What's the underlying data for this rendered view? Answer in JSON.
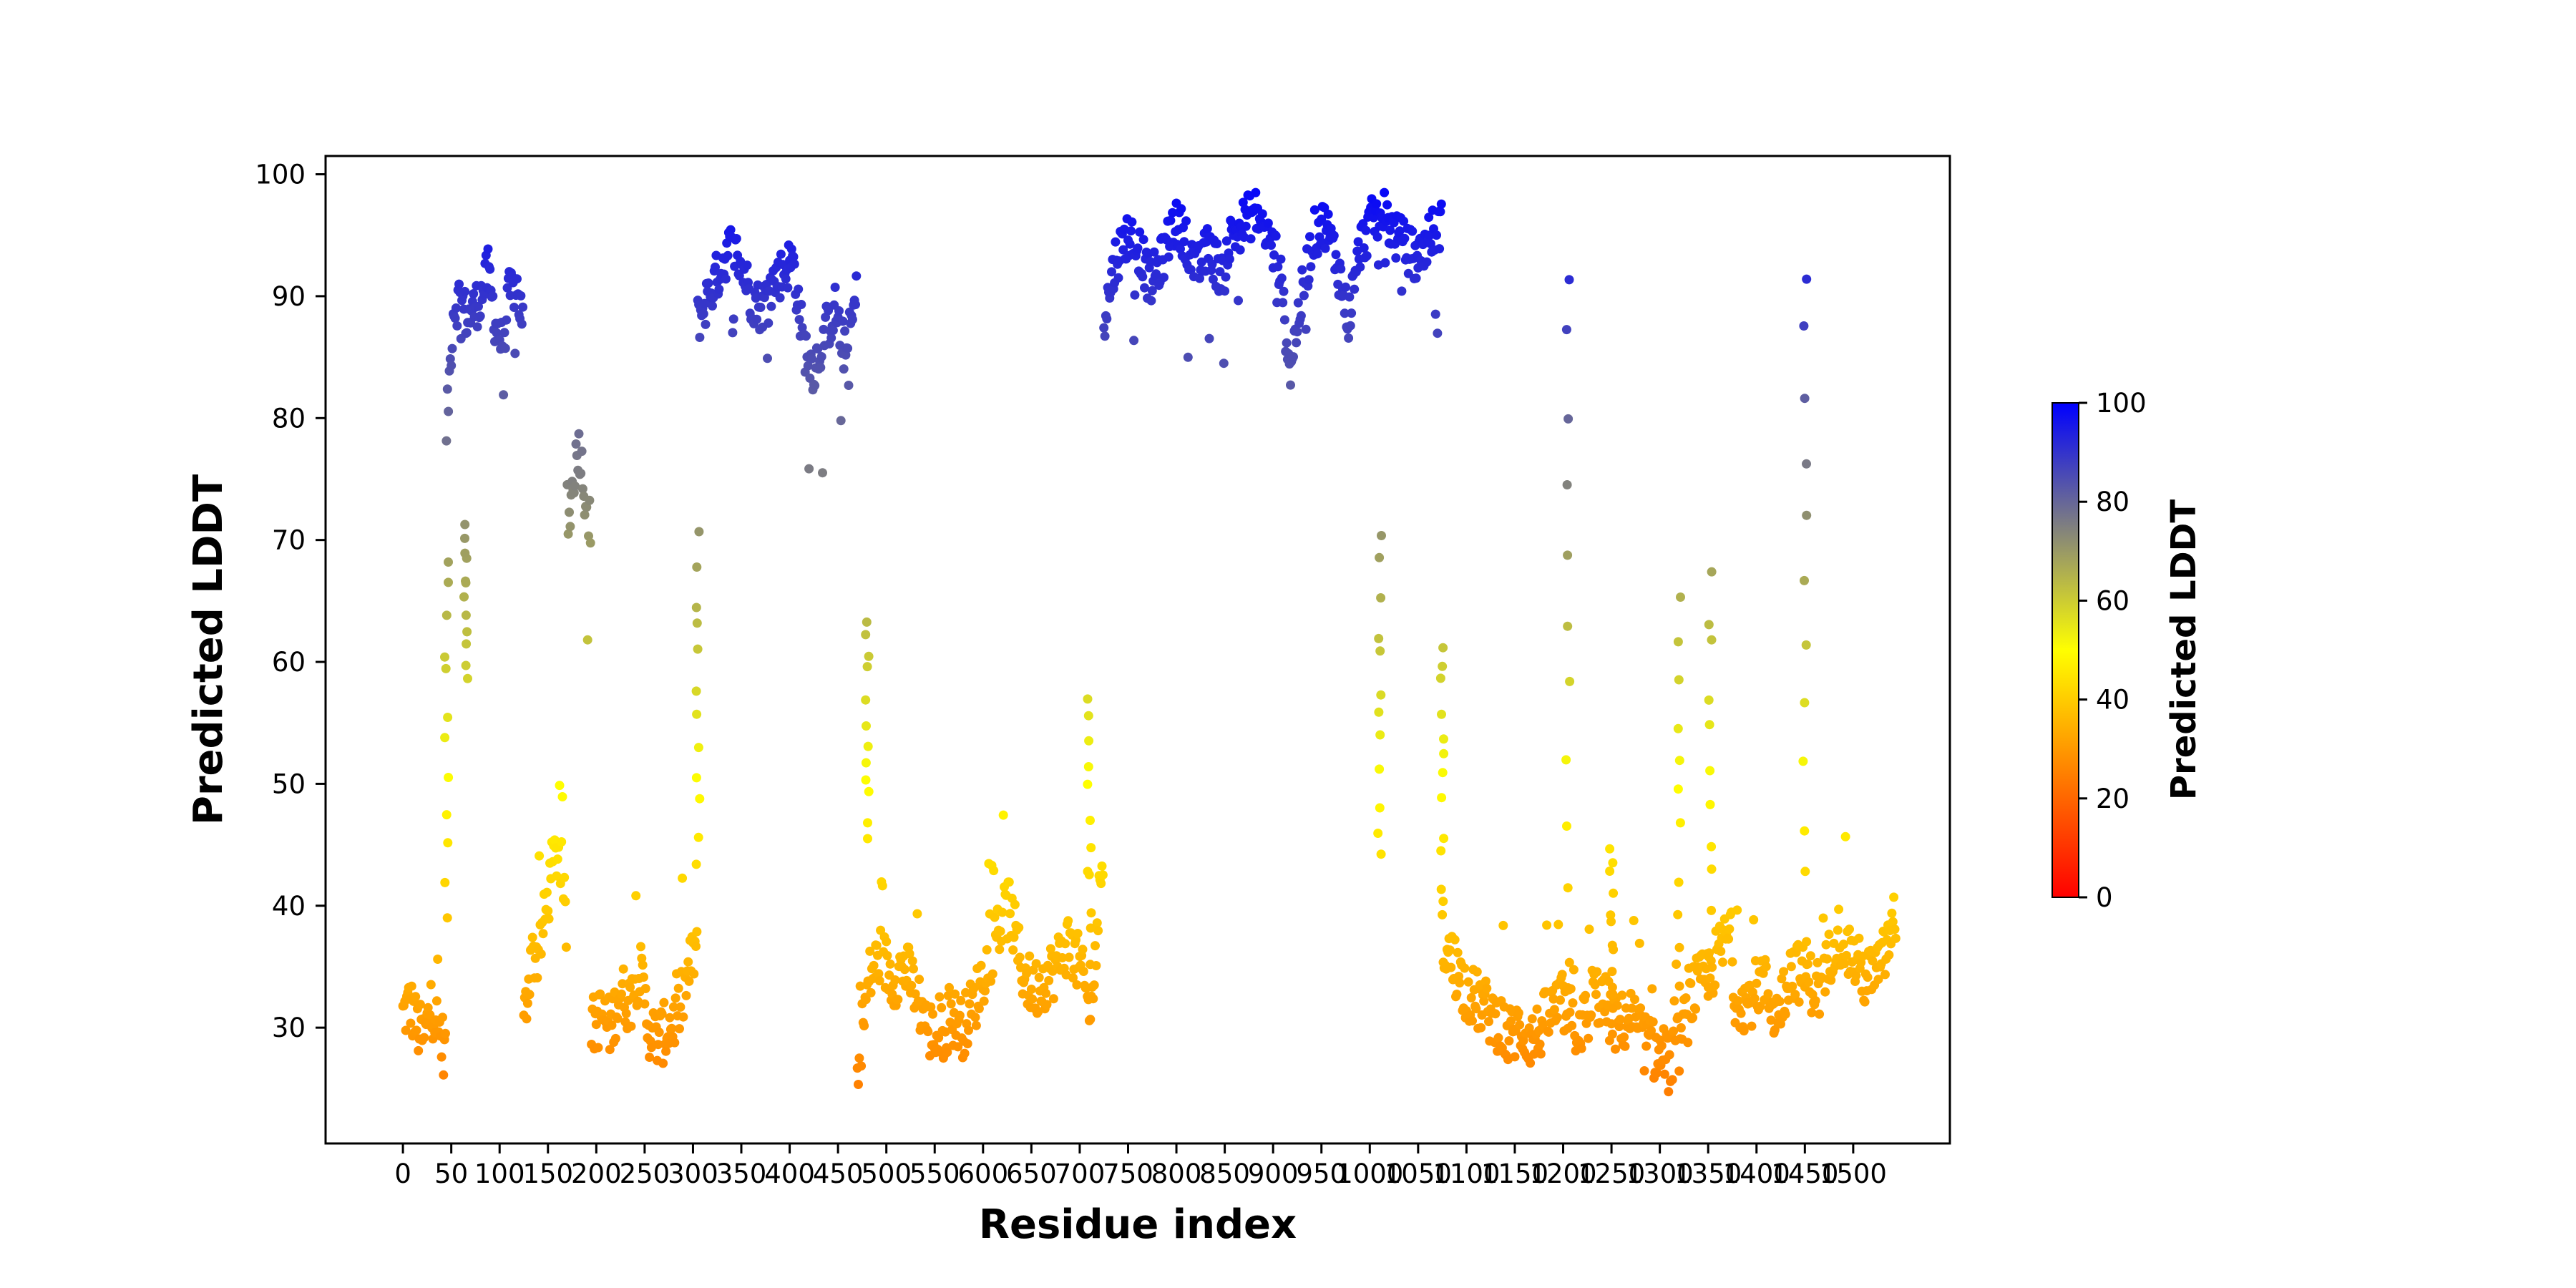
{
  "chart_data": {
    "type": "scatter",
    "xlabel": "Residue index",
    "ylabel": "Predicted LDDT",
    "xlim": [
      -80,
      1600
    ],
    "ylim": [
      20.5,
      101.5
    ],
    "x_ticks": [
      "0",
      "50",
      "100",
      "150",
      "200",
      "250",
      "300",
      "350",
      "400",
      "450",
      "500",
      "550",
      "600",
      "650",
      "700",
      "750",
      "800",
      "850",
      "900",
      "950",
      "1000",
      "1050",
      "1100",
      "1150",
      "1200",
      "1250",
      "1300",
      "1350",
      "1400",
      "1450",
      "1500"
    ],
    "y_ticks": [
      "30",
      "40",
      "50",
      "60",
      "70",
      "80",
      "90",
      "100"
    ],
    "grid": false,
    "colorbar": {
      "label": "Predicted LDDT",
      "range": [
        0,
        100
      ],
      "ticks": [
        "0",
        "20",
        "40",
        "60",
        "80",
        "100"
      ],
      "colormap": [
        "#ff0000",
        "#ffff00",
        "#0000ff"
      ]
    },
    "series": [
      {
        "segments": [
          {
            "x0": 0,
            "x1": 45,
            "profile": [
              31,
              32,
              30,
              29,
              32,
              30,
              28
            ]
          },
          {
            "x0": 45,
            "x1": 125,
            "profile": [
              79,
              89,
              90,
              88,
              89,
              90,
              92,
              88,
              86,
              90,
              91,
              88
            ]
          },
          {
            "x0": 125,
            "x1": 170,
            "profile": [
              30,
              36,
              36,
              39,
              43,
              45,
              38
            ]
          },
          {
            "x0": 170,
            "x1": 195,
            "profile": [
              70,
              75,
              78,
              74,
              71
            ]
          },
          {
            "x0": 195,
            "x1": 305,
            "profile": [
              30,
              31,
              30,
              33,
              32,
              35,
              30,
              29,
              30,
              31,
              34,
              37
            ]
          },
          {
            "x0": 305,
            "x1": 470,
            "profile": [
              88,
              90,
              92,
              94,
              93,
              90,
              89,
              91,
              92,
              93,
              86,
              84,
              87,
              89,
              85,
              90
            ]
          },
          {
            "x0": 470,
            "x1": 725,
            "profile": [
              27,
              34,
              36,
              34,
              35,
              33,
              30,
              29,
              31,
              30,
              32,
              35,
              38,
              40,
              35,
              33,
              34,
              35,
              37,
              35,
              31,
              45
            ]
          },
          {
            "x0": 725,
            "x1": 1075,
            "profile": [
              88,
              93,
              95,
              94,
              91,
              93,
              96,
              95,
              92,
              94,
              92,
              95,
              96,
              97,
              95,
              93,
              84,
              90,
              95,
              96,
              93,
              88,
              94,
              96,
              97,
              95,
              94,
              93,
              95,
              96
            ]
          },
          {
            "x0": 1075,
            "x1": 1140,
            "profile": [
              37,
              35,
              33,
              32,
              31,
              30
            ]
          },
          {
            "x0": 1140,
            "x1": 1230,
            "profile": [
              29,
              30,
              29,
              31,
              32,
              30,
              31
            ]
          },
          {
            "x0": 1230,
            "x1": 1375,
            "profile": [
              33,
              32,
              30,
              31,
              29,
              28,
              27,
              29,
              33,
              34,
              36,
              38
            ]
          },
          {
            "x0": 1375,
            "x1": 1545,
            "profile": [
              33,
              32,
              34,
              31,
              35,
              34,
              33,
              38,
              36,
              34,
              35,
              39
            ]
          }
        ],
        "spikes": [
          {
            "x": 1205,
            "top": 92,
            "base": 30
          },
          {
            "x": 1250,
            "top": 45,
            "base": 31
          },
          {
            "x": 1320,
            "top": 65,
            "base": 30
          },
          {
            "x": 1352,
            "top": 67,
            "base": 33
          },
          {
            "x": 1450,
            "top": 92,
            "base": 37
          },
          {
            "x": 1010,
            "top": 70,
            "base": 44
          },
          {
            "x": 1075,
            "top": 62,
            "base": 40
          },
          {
            "x": 710,
            "top": 57,
            "base": 36
          },
          {
            "x": 480,
            "top": 64,
            "base": 45
          },
          {
            "x": 305,
            "top": 70,
            "base": 43
          },
          {
            "x": 45,
            "top": 69,
            "base": 40
          },
          {
            "x": 65,
            "top": 72,
            "base": 58
          }
        ]
      }
    ]
  }
}
